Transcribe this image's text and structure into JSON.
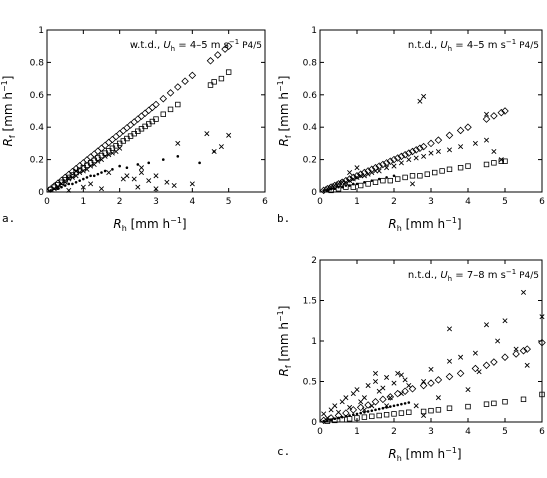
{
  "chart_data": [
    {
      "panel_label": "a.",
      "type": "scatter",
      "annotation": {
        "prefix": "w.t.d., ",
        "var": "U",
        "sub": "h",
        "range": " = 4–5 m s",
        "sup": "−1",
        "suffix": "P4/5"
      },
      "xlabel": {
        "var": "R",
        "sub": "h",
        "unit": " [mm h",
        "sup": "−1",
        "close": "]"
      },
      "ylabel": {
        "var": "R",
        "sub": "f",
        "unit": " [mm h",
        "sup": "−1",
        "close": "]"
      },
      "xlim": [
        0,
        6
      ],
      "ylim": [
        0,
        1
      ],
      "xticks": [
        "0",
        "1",
        "2",
        "3",
        "4",
        "5",
        "6"
      ],
      "yticks": [
        "0",
        "0.2",
        "0.4",
        "0.6",
        "0.8",
        "1"
      ],
      "series": [
        {
          "marker": "diamond",
          "x": [
            0.1,
            0.2,
            0.3,
            0.4,
            0.5,
            0.6,
            0.7,
            0.8,
            0.9,
            1.0,
            1.1,
            1.2,
            1.3,
            1.4,
            1.5,
            1.6,
            1.7,
            1.8,
            1.9,
            2.0,
            2.1,
            2.2,
            2.3,
            2.4,
            2.5,
            2.6,
            2.7,
            2.8,
            2.9,
            3.0,
            3.2,
            3.4,
            3.6,
            3.8,
            4.0,
            4.5,
            4.7,
            4.9,
            5.0
          ],
          "y": [
            0.018,
            0.036,
            0.054,
            0.072,
            0.09,
            0.108,
            0.126,
            0.144,
            0.162,
            0.18,
            0.198,
            0.216,
            0.234,
            0.252,
            0.27,
            0.288,
            0.306,
            0.324,
            0.342,
            0.36,
            0.378,
            0.396,
            0.414,
            0.432,
            0.45,
            0.468,
            0.486,
            0.504,
            0.522,
            0.54,
            0.576,
            0.612,
            0.648,
            0.684,
            0.72,
            0.81,
            0.846,
            0.882,
            0.9
          ]
        },
        {
          "marker": "square",
          "x": [
            0.1,
            0.2,
            0.3,
            0.4,
            0.5,
            0.6,
            0.7,
            0.8,
            0.9,
            1.0,
            1.1,
            1.2,
            1.3,
            1.4,
            1.5,
            1.6,
            1.7,
            1.8,
            1.9,
            2.0,
            2.1,
            2.2,
            2.3,
            2.4,
            2.5,
            2.6,
            2.7,
            2.8,
            2.9,
            3.0,
            3.2,
            3.4,
            3.6,
            4.5,
            4.6,
            4.8,
            5.0
          ],
          "y": [
            0.015,
            0.03,
            0.045,
            0.06,
            0.075,
            0.09,
            0.105,
            0.12,
            0.135,
            0.15,
            0.165,
            0.18,
            0.195,
            0.21,
            0.225,
            0.24,
            0.255,
            0.27,
            0.285,
            0.3,
            0.315,
            0.33,
            0.345,
            0.36,
            0.375,
            0.39,
            0.405,
            0.42,
            0.435,
            0.45,
            0.48,
            0.51,
            0.54,
            0.66,
            0.68,
            0.7,
            0.74
          ]
        },
        {
          "marker": "x",
          "x": [
            0.2,
            0.3,
            0.4,
            0.5,
            0.6,
            0.7,
            0.8,
            0.9,
            1.0,
            1.1,
            1.2,
            1.3,
            1.4,
            1.5,
            1.6,
            1.7,
            1.8,
            1.9,
            2.0,
            2.2,
            2.4,
            2.6,
            2.8,
            3.0,
            3.3,
            3.6,
            4.0,
            4.6,
            4.8,
            5.0,
            0.8,
            1.2,
            1.5,
            2.5,
            3.0,
            3.5,
            2.6,
            1.0,
            0.6,
            4.4,
            1.7,
            2.1
          ],
          "y": [
            0.02,
            0.03,
            0.05,
            0.06,
            0.08,
            0.09,
            0.1,
            0.12,
            0.13,
            0.14,
            0.16,
            0.17,
            0.19,
            0.2,
            0.22,
            0.23,
            0.24,
            0.25,
            0.27,
            0.1,
            0.08,
            0.12,
            0.07,
            0.1,
            0.06,
            0.3,
            0.05,
            0.25,
            0.28,
            0.35,
            0.13,
            0.05,
            0.02,
            0.03,
            0.02,
            0.04,
            0.15,
            0.03,
            0.01,
            0.36,
            0.12,
            0.08
          ]
        },
        {
          "marker": "dot",
          "x": [
            0.1,
            0.2,
            0.3,
            0.4,
            0.5,
            0.6,
            0.7,
            0.8,
            0.9,
            1.0,
            1.1,
            1.2,
            1.3,
            1.4,
            1.5,
            1.6,
            1.8,
            2.0,
            2.2,
            2.5,
            2.8,
            3.2,
            3.6,
            4.2,
            4.6
          ],
          "y": [
            0.01,
            0.02,
            0.02,
            0.03,
            0.04,
            0.05,
            0.05,
            0.06,
            0.07,
            0.08,
            0.09,
            0.1,
            0.1,
            0.11,
            0.12,
            0.13,
            0.14,
            0.16,
            0.15,
            0.17,
            0.18,
            0.2,
            0.22,
            0.18,
            0.25
          ]
        }
      ]
    },
    {
      "panel_label": "b.",
      "type": "scatter",
      "annotation": {
        "prefix": "n.t.d., ",
        "var": "U",
        "sub": "h",
        "range": " = 4–5 m s",
        "sup": "−1",
        "suffix": "P4/5"
      },
      "xlabel": {
        "var": "R",
        "sub": "h",
        "unit": " [mm h",
        "sup": "−1",
        "close": "]"
      },
      "ylabel": {
        "var": "R",
        "sub": "f",
        "unit": " [mm h",
        "sup": "−1",
        "close": "]"
      },
      "xlim": [
        0,
        6
      ],
      "ylim": [
        0,
        1
      ],
      "xticks": [
        "0",
        "1",
        "2",
        "3",
        "4",
        "5",
        "6"
      ],
      "yticks": [
        "0",
        "0.2",
        "0.4",
        "0.6",
        "0.8",
        "1"
      ],
      "series": [
        {
          "marker": "diamond",
          "x": [
            0.1,
            0.2,
            0.3,
            0.4,
            0.5,
            0.6,
            0.7,
            0.8,
            0.9,
            1.0,
            1.1,
            1.2,
            1.3,
            1.4,
            1.5,
            1.6,
            1.7,
            1.8,
            1.9,
            2.0,
            2.1,
            2.2,
            2.3,
            2.4,
            2.5,
            2.6,
            2.7,
            2.8,
            3.0,
            3.2,
            3.5,
            3.8,
            4.0,
            4.5,
            4.7,
            4.9,
            5.0
          ],
          "y": [
            0.01,
            0.02,
            0.03,
            0.04,
            0.05,
            0.06,
            0.07,
            0.08,
            0.09,
            0.1,
            0.11,
            0.12,
            0.13,
            0.14,
            0.15,
            0.16,
            0.17,
            0.18,
            0.19,
            0.2,
            0.21,
            0.22,
            0.23,
            0.24,
            0.25,
            0.26,
            0.27,
            0.28,
            0.3,
            0.32,
            0.35,
            0.38,
            0.4,
            0.45,
            0.47,
            0.49,
            0.5
          ]
        },
        {
          "marker": "square",
          "x": [
            0.3,
            0.5,
            0.7,
            0.9,
            1.1,
            1.3,
            1.5,
            1.7,
            1.9,
            2.1,
            2.3,
            2.5,
            2.7,
            2.9,
            3.1,
            3.3,
            3.5,
            3.8,
            4.0,
            4.5,
            4.7,
            4.9,
            5.0
          ],
          "y": [
            0.01,
            0.02,
            0.03,
            0.03,
            0.04,
            0.05,
            0.06,
            0.07,
            0.07,
            0.08,
            0.09,
            0.1,
            0.1,
            0.11,
            0.12,
            0.13,
            0.14,
            0.15,
            0.16,
            0.17,
            0.18,
            0.19,
            0.19
          ]
        },
        {
          "marker": "x",
          "x": [
            0.2,
            0.3,
            0.4,
            0.5,
            0.6,
            0.7,
            0.8,
            0.9,
            1.0,
            1.1,
            1.2,
            1.3,
            1.4,
            1.5,
            1.6,
            1.8,
            2.0,
            2.2,
            2.4,
            2.6,
            2.8,
            3.0,
            3.2,
            3.5,
            3.8,
            4.2,
            4.5,
            4.7,
            4.9,
            1.0,
            0.8,
            2.5,
            2.7,
            2.8,
            4.5
          ],
          "y": [
            0.02,
            0.03,
            0.04,
            0.05,
            0.06,
            0.06,
            0.07,
            0.08,
            0.09,
            0.1,
            0.1,
            0.11,
            0.12,
            0.13,
            0.13,
            0.15,
            0.16,
            0.18,
            0.2,
            0.21,
            0.22,
            0.24,
            0.25,
            0.26,
            0.28,
            0.3,
            0.32,
            0.25,
            0.2,
            0.15,
            0.12,
            0.05,
            0.56,
            0.59,
            0.48
          ]
        },
        {
          "marker": "dot",
          "x": [
            0.1,
            0.2,
            0.3,
            0.4,
            0.5,
            0.6,
            0.7,
            0.8,
            0.9,
            1.0,
            1.2,
            1.4,
            1.6,
            1.8,
            2.0
          ],
          "y": [
            0.01,
            0.01,
            0.02,
            0.02,
            0.03,
            0.03,
            0.04,
            0.04,
            0.05,
            0.05,
            0.06,
            0.07,
            0.08,
            0.09,
            0.1
          ]
        }
      ]
    },
    {
      "panel_label": "c.",
      "type": "scatter",
      "annotation": {
        "prefix": "n.t.d., ",
        "var": "U",
        "sub": "h",
        "range": " = 7–8 m s",
        "sup": "−1",
        "suffix": "P4/5"
      },
      "xlabel": {
        "var": "R",
        "sub": "h",
        "unit": " [mm h",
        "sup": "−1",
        "close": "]"
      },
      "ylabel": {
        "var": "R",
        "sub": "f",
        "unit": " [mm h",
        "sup": "−1",
        "close": "]"
      },
      "xlim": [
        0,
        6
      ],
      "ylim": [
        0,
        2
      ],
      "xticks": [
        "0",
        "1",
        "2",
        "3",
        "4",
        "5",
        "6"
      ],
      "yticks": [
        "0",
        "0.5",
        "1",
        "1.5",
        "2"
      ],
      "series": [
        {
          "marker": "diamond",
          "x": [
            0.1,
            0.3,
            0.5,
            0.7,
            0.9,
            1.1,
            1.3,
            1.5,
            1.7,
            1.9,
            2.1,
            2.3,
            2.5,
            2.8,
            3.0,
            3.2,
            3.5,
            3.8,
            4.2,
            4.5,
            4.7,
            5.0,
            5.3,
            5.5,
            5.6,
            6.0
          ],
          "y": [
            0.02,
            0.05,
            0.08,
            0.11,
            0.15,
            0.18,
            0.21,
            0.25,
            0.28,
            0.31,
            0.35,
            0.38,
            0.41,
            0.45,
            0.48,
            0.52,
            0.56,
            0.6,
            0.66,
            0.7,
            0.74,
            0.8,
            0.84,
            0.88,
            0.9,
            0.98
          ]
        },
        {
          "marker": "square",
          "x": [
            0.2,
            0.4,
            0.6,
            0.8,
            1.0,
            1.2,
            1.4,
            1.6,
            1.8,
            2.0,
            2.2,
            2.4,
            2.8,
            3.0,
            3.2,
            3.5,
            4.0,
            4.5,
            4.7,
            5.0,
            5.5,
            6.0
          ],
          "y": [
            0.01,
            0.02,
            0.03,
            0.04,
            0.05,
            0.06,
            0.07,
            0.08,
            0.09,
            0.1,
            0.11,
            0.12,
            0.13,
            0.14,
            0.15,
            0.17,
            0.19,
            0.22,
            0.23,
            0.25,
            0.28,
            0.34
          ]
        },
        {
          "marker": "x",
          "x": [
            0.1,
            0.2,
            0.3,
            0.4,
            0.5,
            0.6,
            0.7,
            0.8,
            0.9,
            1.0,
            1.1,
            1.2,
            1.3,
            1.4,
            1.5,
            1.6,
            1.7,
            1.8,
            1.9,
            2.0,
            2.1,
            2.2,
            2.3,
            2.4,
            2.6,
            2.8,
            3.0,
            3.2,
            3.5,
            3.8,
            4.2,
            4.5,
            4.8,
            5.0,
            5.3,
            5.5,
            5.6,
            6.0,
            1.2,
            1.5,
            1.8,
            2.2,
            2.8,
            3.5,
            4.0,
            4.3
          ],
          "y": [
            0.1,
            0.05,
            0.15,
            0.2,
            0.12,
            0.25,
            0.3,
            0.18,
            0.35,
            0.4,
            0.25,
            0.3,
            0.45,
            0.2,
            0.5,
            0.38,
            0.42,
            0.55,
            0.3,
            0.48,
            0.6,
            0.35,
            0.52,
            0.45,
            0.2,
            0.5,
            0.65,
            0.3,
            0.75,
            0.8,
            0.85,
            1.2,
            1.0,
            1.25,
            0.9,
            1.6,
            0.7,
            1.3,
            0.15,
            0.6,
            0.2,
            0.58,
            0.08,
            1.15,
            0.4,
            0.62
          ]
        },
        {
          "marker": "dot",
          "x": [
            0.1,
            0.2,
            0.3,
            0.4,
            0.5,
            0.6,
            0.7,
            0.8,
            0.9,
            1.0,
            1.1,
            1.2,
            1.3,
            1.4,
            1.5,
            1.6,
            1.7,
            1.8,
            1.9,
            2.0,
            2.1,
            2.2,
            2.3,
            2.4
          ],
          "y": [
            0.01,
            0.02,
            0.03,
            0.04,
            0.05,
            0.06,
            0.07,
            0.08,
            0.09,
            0.1,
            0.11,
            0.12,
            0.13,
            0.14,
            0.15,
            0.16,
            0.17,
            0.18,
            0.19,
            0.2,
            0.21,
            0.22,
            0.23,
            0.24
          ]
        }
      ]
    }
  ]
}
